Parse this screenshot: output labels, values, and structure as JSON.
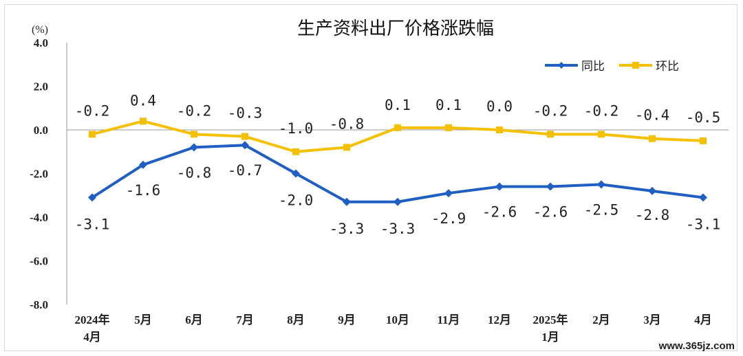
{
  "chart_data": {
    "type": "line",
    "title": "生产资料出厂价格涨跌幅",
    "unit_label": "(%)",
    "ylim": [
      -8.0,
      4.0
    ],
    "yticks": [
      "4.0",
      "2.0",
      "0.0",
      "-2.0",
      "-4.0",
      "-6.0",
      "-8.0"
    ],
    "ytick_values": [
      4,
      2,
      0,
      -2,
      -4,
      -6,
      -8
    ],
    "categories": [
      [
        "2024年",
        "4月"
      ],
      [
        "5月"
      ],
      [
        "6月"
      ],
      [
        "7月"
      ],
      [
        "8月"
      ],
      [
        "9月"
      ],
      [
        "10月"
      ],
      [
        "11月"
      ],
      [
        "12月"
      ],
      [
        "2025年",
        "1月"
      ],
      [
        "2月"
      ],
      [
        "3月"
      ],
      [
        "4月"
      ]
    ],
    "series": [
      {
        "name": "同比",
        "color": "#1F5FC4",
        "marker": "diamond",
        "values": [
          -3.1,
          -1.6,
          -0.8,
          -0.7,
          -2.0,
          -3.3,
          -3.3,
          -2.9,
          -2.6,
          -2.6,
          -2.5,
          -2.8,
          -3.1
        ],
        "labels": [
          "-3.1",
          "-1.6",
          "-0.8",
          "-0.7",
          "-2.0",
          "-3.3",
          "-3.3",
          "-2.9",
          "-2.6",
          "-2.6",
          "-2.5",
          "-2.8",
          "-3.1"
        ]
      },
      {
        "name": "环比",
        "color": "#F5C000",
        "marker": "square",
        "values": [
          -0.2,
          0.4,
          -0.2,
          -0.3,
          -1.0,
          -0.8,
          0.1,
          0.1,
          0.0,
          -0.2,
          -0.2,
          -0.4,
          -0.5
        ],
        "labels": [
          "-0.2",
          "0.4",
          "-0.2",
          "-0.3",
          "-1.0",
          "-0.8",
          "0.1",
          "0.1",
          "0.0",
          "-0.2",
          "-0.2",
          "-0.4",
          "-0.5"
        ]
      }
    ],
    "legend_position": "top-right",
    "grid": false
  },
  "watermark": "www.365jz.com"
}
